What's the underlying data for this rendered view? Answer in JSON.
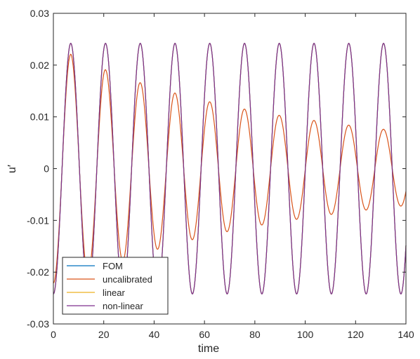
{
  "chart_data": {
    "type": "line",
    "xlabel": "time",
    "ylabel": "u′",
    "xlim": [
      0,
      140
    ],
    "ylim": [
      -0.03,
      0.03
    ],
    "x_ticks": [
      0,
      20,
      40,
      60,
      80,
      100,
      120,
      140
    ],
    "y_ticks": [
      -0.03,
      -0.02,
      -0.01,
      0,
      0.01,
      0.02,
      0.03
    ],
    "x_tick_labels": [
      "0",
      "20",
      "40",
      "60",
      "80",
      "100",
      "120",
      "140"
    ],
    "y_tick_labels": [
      "-0.03",
      "-0.02",
      "-0.01",
      "0",
      "0.01",
      "0.02",
      "0.03"
    ],
    "grid": false,
    "legend_position": "bottom-left",
    "signal_model": {
      "description": "u'(t) = -A(t) * cos(2*pi*t/period)",
      "period": 13.8,
      "constant_amplitude": 0.0242,
      "uncalibrated_peaks": [
        {
          "t": 6.9,
          "value": 0.0221
        },
        {
          "t": 20.7,
          "value": 0.0191
        },
        {
          "t": 34.5,
          "value": 0.0166
        },
        {
          "t": 48.3,
          "value": 0.0146
        },
        {
          "t": 62.1,
          "value": 0.0129
        },
        {
          "t": 75.9,
          "value": 0.0115
        },
        {
          "t": 89.7,
          "value": 0.0103
        },
        {
          "t": 103.5,
          "value": 0.0093
        },
        {
          "t": 117.3,
          "value": 0.0084
        },
        {
          "t": 131.1,
          "value": 0.0076
        }
      ]
    },
    "series": [
      {
        "name": "FOM",
        "color": "#0072BD",
        "amplitude_model": "constant"
      },
      {
        "name": "uncalibrated",
        "color": "#D95319",
        "amplitude_model": "decaying"
      },
      {
        "name": "linear",
        "color": "#EDB120",
        "amplitude_model": "constant"
      },
      {
        "name": "non-linear",
        "color": "#7E2F8E",
        "amplitude_model": "constant"
      }
    ]
  }
}
